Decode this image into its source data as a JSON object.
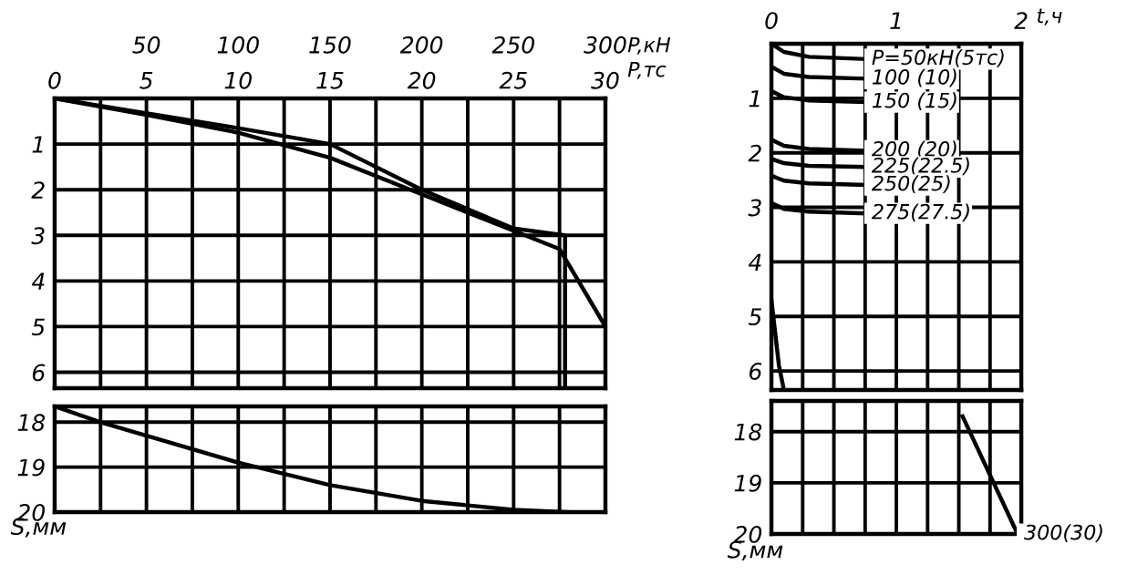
{
  "chart_data": [
    {
      "type": "line",
      "xlabel": "P,кН",
      "x2label": "P,тс",
      "xlim": [
        0,
        300
      ],
      "xticks": [
        {
          "value": 0,
          "label": null
        },
        {
          "value": 25,
          "label": null
        },
        50,
        {
          "value": 75,
          "label": null
        },
        100,
        {
          "value": 125,
          "label": null
        },
        150,
        {
          "value": 175,
          "label": null
        },
        200,
        {
          "value": 225,
          "label": null
        },
        250,
        {
          "value": 275,
          "label": null
        },
        300
      ],
      "x2lim": [
        0,
        30
      ],
      "x2ticks": [
        0,
        5,
        10,
        15,
        20,
        25,
        30
      ],
      "ylim": [
        6.35,
        0
      ],
      "yticks": [
        {
          "value": 0,
          "label": null
        },
        1,
        2,
        3,
        4,
        5,
        6
      ],
      "grid": true,
      "marker": "none",
      "line_style": "solid",
      "series": [
        {
          "color": "#000000",
          "x": [
            0,
            50,
            100,
            150,
            200,
            250,
            275,
            300
          ],
          "values": [
            0,
            0.36,
            0.75,
            1.3,
            2.1,
            2.9,
            3.3,
            5.0
          ]
        },
        {
          "color": "#000000",
          "x": [
            0,
            100,
            150,
            200,
            250,
            278,
            278
          ],
          "values": [
            0,
            0.65,
            1.0,
            2.0,
            2.85,
            3.0,
            6.35
          ]
        }
      ]
    },
    {
      "type": "line",
      "ylabel": "S,мм",
      "xlim": [
        0,
        300
      ],
      "xticks": [
        0,
        25,
        50,
        75,
        100,
        125,
        150,
        175,
        200,
        225,
        250,
        275,
        300
      ],
      "ylim": [
        20,
        17.65
      ],
      "yticks": [
        18,
        19,
        20
      ],
      "tick_labels": "y",
      "grid": true,
      "marker": "none",
      "line_style": "solid",
      "series": [
        {
          "color": "#000000",
          "x": [
            0,
            25,
            50,
            100,
            150,
            200,
            250,
            280
          ],
          "values": [
            17.65,
            18.0,
            18.3,
            18.9,
            19.4,
            19.75,
            19.95,
            20.0
          ]
        }
      ]
    },
    {
      "type": "line",
      "xlabel": "t,ч",
      "xlim": [
        0,
        2
      ],
      "xticks": [
        0,
        {
          "value": 0.25,
          "label": null
        },
        {
          "value": 0.5,
          "label": null
        },
        {
          "value": 0.75,
          "label": null
        },
        1,
        {
          "value": 1.25,
          "label": null
        },
        {
          "value": 1.5,
          "label": null
        },
        {
          "value": 1.75,
          "label": null
        },
        2
      ],
      "ylim": [
        6.35,
        0
      ],
      "yticks": [
        {
          "value": 0,
          "label": null
        },
        1,
        2,
        3,
        4,
        5,
        6
      ],
      "grid": true,
      "marker": "none",
      "line_style": "solid",
      "series": [
        {
          "name": "P=50кН(5тс)",
          "color": "#000000",
          "x": [
            0,
            0.1,
            0.3,
            0.75
          ],
          "values": [
            0,
            0.15,
            0.24,
            0.28
          ]
        },
        {
          "name": "100 (10)",
          "color": "#000000",
          "x": [
            0,
            0.1,
            0.3,
            0.75
          ],
          "values": [
            0.42,
            0.55,
            0.61,
            0.64
          ]
        },
        {
          "name": "150 (15)",
          "color": "#000000",
          "x": [
            0,
            0.1,
            0.3,
            0.75
          ],
          "values": [
            0.87,
            0.98,
            1.04,
            1.07
          ]
        },
        {
          "name": "200 (20)",
          "color": "#000000",
          "x": [
            0,
            0.1,
            0.3,
            0.75
          ],
          "values": [
            1.76,
            1.87,
            1.93,
            1.96
          ]
        },
        {
          "name": "225(22.5)",
          "color": "#000000",
          "x": [
            0,
            0.1,
            0.3,
            0.75
          ],
          "values": [
            2.11,
            2.19,
            2.24,
            2.26
          ]
        },
        {
          "name": "250(25)",
          "color": "#000000",
          "x": [
            0,
            0.1,
            0.3,
            0.75
          ],
          "values": [
            2.42,
            2.51,
            2.56,
            2.59
          ]
        },
        {
          "name": "275(27.5)",
          "color": "#000000",
          "x": [
            0,
            0.1,
            0.3,
            0.75
          ],
          "values": [
            2.92,
            3.03,
            3.08,
            3.11
          ]
        },
        {
          "color": "#000000",
          "x": [
            0,
            0.06,
            0.1
          ],
          "values": [
            4.7,
            5.9,
            6.35
          ]
        }
      ]
    },
    {
      "type": "line",
      "ylabel": "S,мм",
      "xlim": [
        0,
        2
      ],
      "xticks": [
        0,
        0.25,
        0.5,
        0.75,
        1,
        1.25,
        1.5,
        1.75,
        2
      ],
      "ylim": [
        20,
        17.4
      ],
      "yticks": [
        18,
        19,
        20
      ],
      "tick_labels": "y",
      "grid": true,
      "marker": "none",
      "line_style": "solid",
      "series": [
        {
          "name": "300(30)",
          "color": "#000000",
          "x": [
            1.53,
            1.97
          ],
          "values": [
            17.7,
            20.0
          ]
        }
      ]
    }
  ]
}
